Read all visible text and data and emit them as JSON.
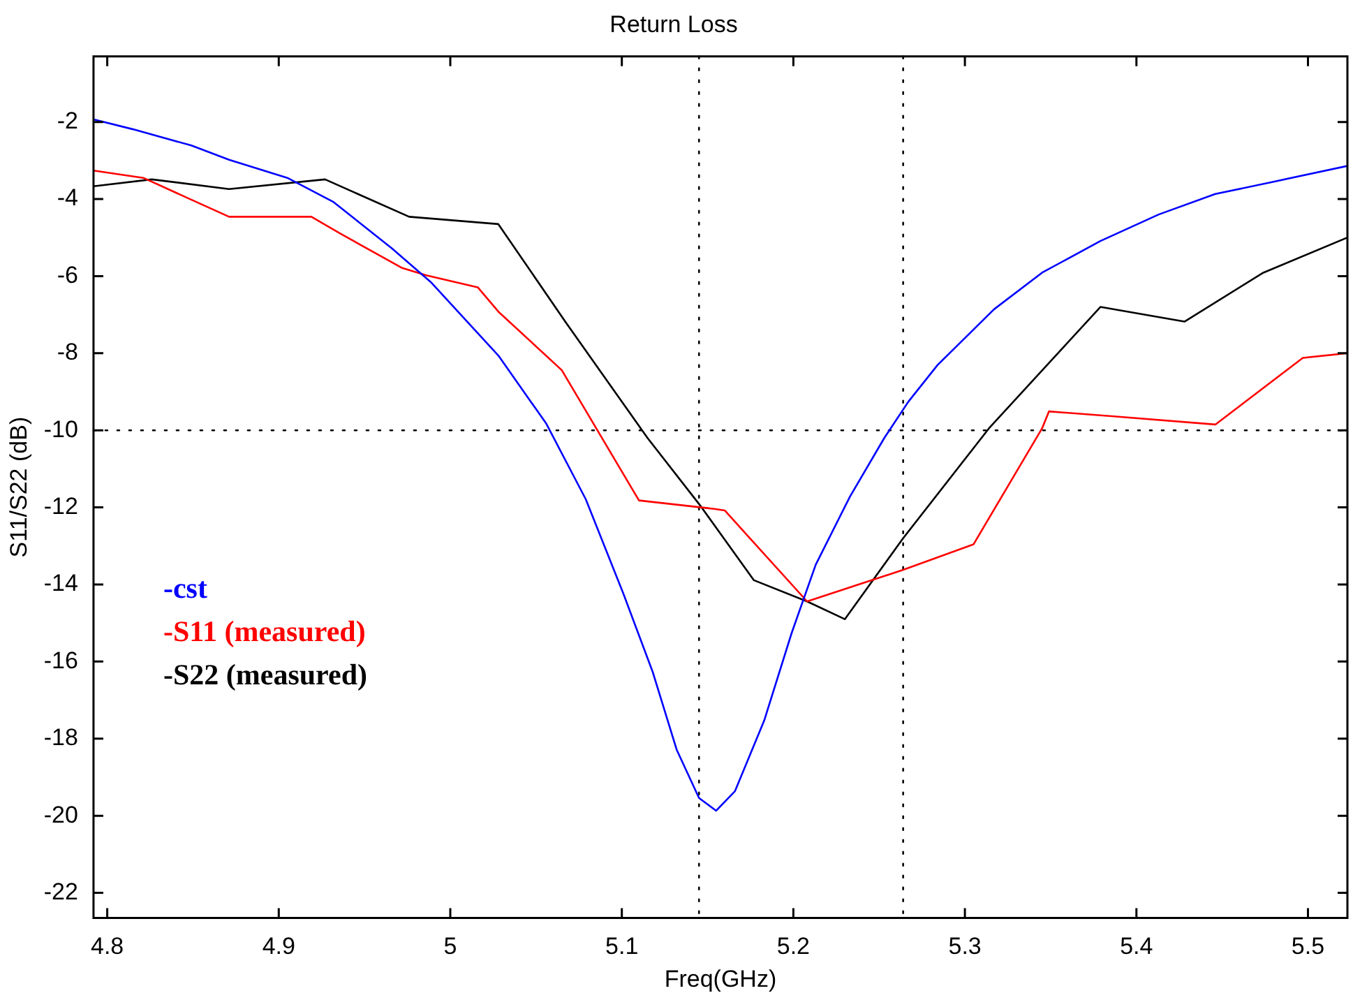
{
  "chart_data": {
    "type": "line",
    "title": "Return Loss",
    "xlabel": "Freq(GHz)",
    "ylabel": "S11/S22 (dB)",
    "xlim": [
      4.792,
      5.523
    ],
    "xticks": [
      4.8,
      4.9,
      5,
      5.1,
      5.2,
      5.3,
      5.4,
      5.5
    ],
    "ylim": [
      -22.65,
      -0.3
    ],
    "yticks": [
      -2,
      -4,
      -6,
      -8,
      -10,
      -12,
      -14,
      -16,
      -18,
      -20,
      -22
    ],
    "grid": false,
    "legend": "left",
    "marker": "none",
    "line_style": "solid",
    "ref_lines": [
      {
        "axis": "y",
        "value": -10,
        "line_style": "dotted",
        "color": "#000000"
      },
      {
        "axis": "x",
        "value": 5.145,
        "line_style": "dotted",
        "color": "#000000"
      },
      {
        "axis": "x",
        "value": 5.264,
        "line_style": "dotted",
        "color": "#000000"
      }
    ],
    "series": [
      {
        "name": "-cst",
        "color": "#0000ff",
        "x": [
          4.7925,
          4.815,
          4.849,
          4.871,
          4.905,
          4.932,
          4.966,
          4.989,
          5.028,
          5.056,
          5.079,
          5.101,
          5.118,
          5.132,
          5.145,
          5.155,
          5.166,
          5.183,
          5.199,
          5.213,
          5.233,
          5.253,
          5.267,
          5.284,
          5.317,
          5.345,
          5.379,
          5.413,
          5.446,
          5.48,
          5.523
        ],
        "values": [
          -1.94,
          -2.19,
          -2.61,
          -2.98,
          -3.45,
          -4.08,
          -5.28,
          -6.17,
          -8.06,
          -9.83,
          -11.79,
          -14.25,
          -16.27,
          -18.29,
          -19.54,
          -19.87,
          -19.36,
          -17.53,
          -15.26,
          -13.49,
          -11.72,
          -10.2,
          -9.26,
          -8.31,
          -6.86,
          -5.91,
          -5.09,
          -4.4,
          -3.87,
          -3.55,
          -3.14
        ]
      },
      {
        "name": "-S11 (measured)",
        "color": "#ff0000",
        "x": [
          4.792,
          4.821,
          4.871,
          4.919,
          4.936,
          4.972,
          4.986,
          5.016,
          5.028,
          5.065,
          5.11,
          5.154,
          5.16,
          5.208,
          5.264,
          5.305,
          5.345,
          5.349,
          5.387,
          5.446,
          5.497,
          5.523
        ],
        "values": [
          -3.26,
          -3.45,
          -4.46,
          -4.46,
          -4.9,
          -5.79,
          -5.98,
          -6.29,
          -6.92,
          -8.44,
          -11.82,
          -12.04,
          -12.08,
          -14.44,
          -13.62,
          -12.96,
          -9.95,
          -9.51,
          -9.64,
          -9.85,
          -8.12,
          -8.0
        ]
      },
      {
        "name": "-S22 (measured)",
        "color": "#000000",
        "x": [
          4.792,
          4.826,
          4.871,
          4.927,
          4.976,
          5.028,
          5.067,
          5.115,
          5.146,
          5.177,
          5.208,
          5.23,
          5.264,
          5.314,
          5.379,
          5.428,
          5.474,
          5.523
        ],
        "values": [
          -3.67,
          -3.49,
          -3.74,
          -3.49,
          -4.46,
          -4.65,
          -7.18,
          -10.2,
          -11.97,
          -13.89,
          -14.44,
          -14.9,
          -12.8,
          -9.95,
          -6.8,
          -7.18,
          -5.91,
          -5.0
        ]
      }
    ]
  }
}
